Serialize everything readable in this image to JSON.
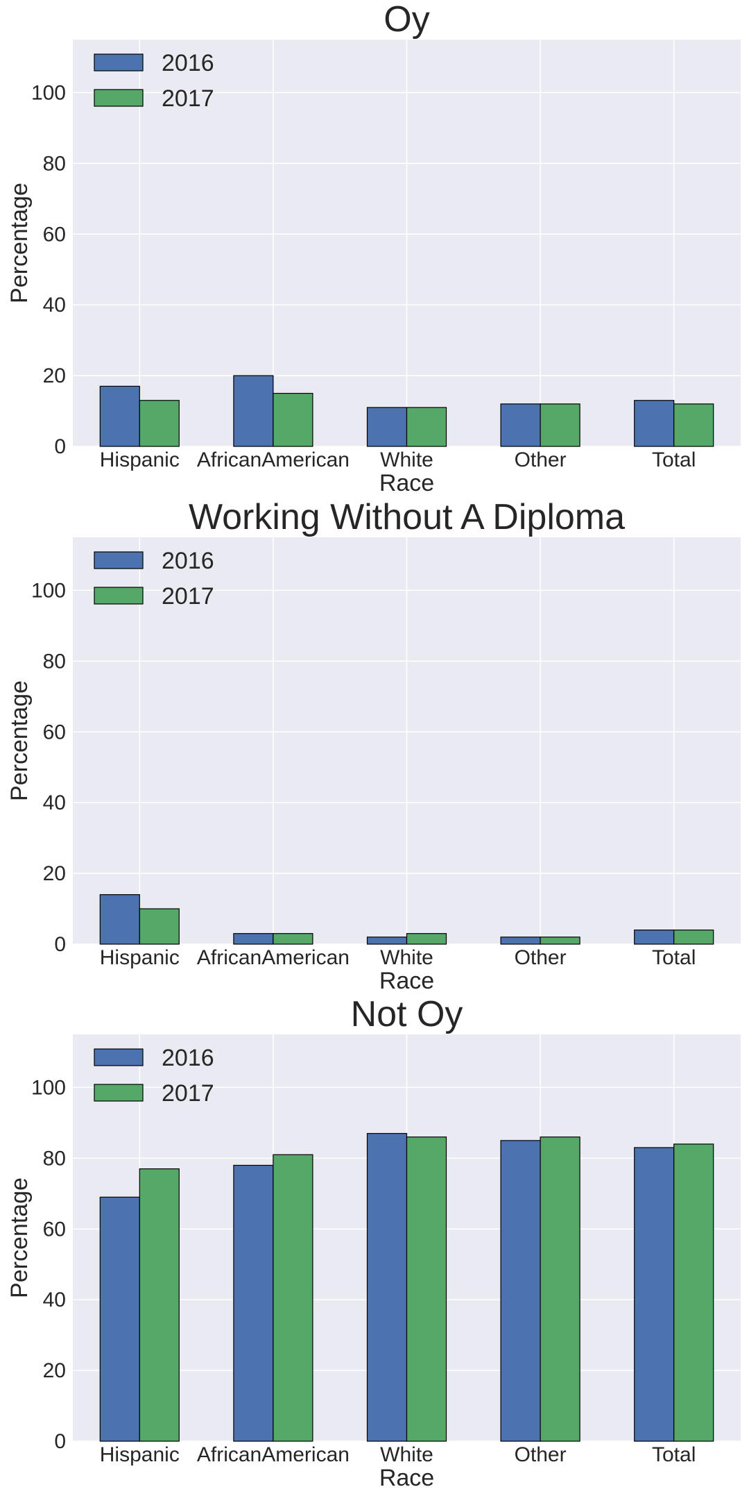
{
  "chart_data": [
    {
      "type": "bar",
      "title": "Oy",
      "xlabel": "Race",
      "ylabel": "Percentage",
      "categories": [
        "Hispanic",
        "AfricanAmerican",
        "White",
        "Other",
        "Total"
      ],
      "series": [
        {
          "name": "2016",
          "values": [
            17,
            20,
            11,
            12,
            13
          ]
        },
        {
          "name": "2017",
          "values": [
            13,
            15,
            11,
            12,
            12
          ]
        }
      ],
      "ylim": [
        0,
        115
      ],
      "yticks": [
        0,
        20,
        40,
        60,
        80,
        100
      ],
      "grid": true,
      "legend": "top-left"
    },
    {
      "type": "bar",
      "title": "Working Without A Diploma",
      "xlabel": "Race",
      "ylabel": "Percentage",
      "categories": [
        "Hispanic",
        "AfricanAmerican",
        "White",
        "Other",
        "Total"
      ],
      "series": [
        {
          "name": "2016",
          "values": [
            14,
            3,
            2,
            2,
            4
          ]
        },
        {
          "name": "2017",
          "values": [
            10,
            3,
            3,
            2,
            4
          ]
        }
      ],
      "ylim": [
        0,
        115
      ],
      "yticks": [
        0,
        20,
        40,
        60,
        80,
        100
      ],
      "grid": true,
      "legend": "top-left"
    },
    {
      "type": "bar",
      "title": "Not Oy",
      "xlabel": "Race",
      "ylabel": "Percentage",
      "categories": [
        "Hispanic",
        "AfricanAmerican",
        "White",
        "Other",
        "Total"
      ],
      "series": [
        {
          "name": "2016",
          "values": [
            69,
            78,
            87,
            85,
            83
          ]
        },
        {
          "name": "2017",
          "values": [
            77,
            81,
            86,
            86,
            84
          ]
        }
      ],
      "ylim": [
        0,
        115
      ],
      "yticks": [
        0,
        20,
        40,
        60,
        80,
        100
      ],
      "grid": true,
      "legend": "top-left"
    }
  ],
  "colors": {
    "series": [
      "#4c72b0",
      "#55a868"
    ],
    "plot_background": "#eaeaf2",
    "grid": "#ffffff",
    "bar_edge": "#000000"
  }
}
